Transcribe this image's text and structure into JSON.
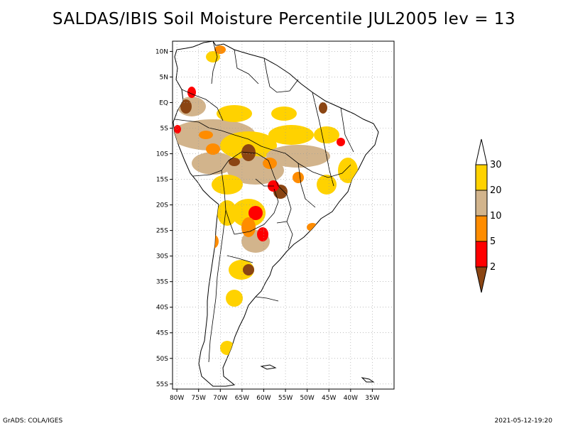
{
  "title": "SALDAS/IBIS Soil Moisture Percentile JUL2005 lev = 13",
  "footer": {
    "left": "GrADS: COLA/IGES",
    "right": "2021-05-12-19:20"
  },
  "map": {
    "region": "South America",
    "lon_range": [
      -81,
      -30
    ],
    "lat_range": [
      -56,
      12
    ],
    "gridlines": true,
    "lat_ticks": [
      {
        "value": 10,
        "label": "10N"
      },
      {
        "value": 5,
        "label": "5N"
      },
      {
        "value": 0,
        "label": "EQ"
      },
      {
        "value": -5,
        "label": "5S"
      },
      {
        "value": -10,
        "label": "10S"
      },
      {
        "value": -15,
        "label": "15S"
      },
      {
        "value": -20,
        "label": "20S"
      },
      {
        "value": -25,
        "label": "25S"
      },
      {
        "value": -30,
        "label": "30S"
      },
      {
        "value": -35,
        "label": "35S"
      },
      {
        "value": -40,
        "label": "40S"
      },
      {
        "value": -45,
        "label": "45S"
      },
      {
        "value": -50,
        "label": "50S"
      },
      {
        "value": -55,
        "label": "55S"
      }
    ],
    "lon_ticks": [
      {
        "value": -80,
        "label": "80W"
      },
      {
        "value": -75,
        "label": "75W"
      },
      {
        "value": -70,
        "label": "70W"
      },
      {
        "value": -65,
        "label": "65W"
      },
      {
        "value": -60,
        "label": "60W"
      },
      {
        "value": -55,
        "label": "55W"
      },
      {
        "value": -50,
        "label": "50W"
      },
      {
        "value": -45,
        "label": "45W"
      },
      {
        "value": -40,
        "label": "40W"
      },
      {
        "value": -35,
        "label": "35W"
      }
    ]
  },
  "colorbar": {
    "levels": [
      {
        "label": "30",
        "color": "#ffffff"
      },
      {
        "label": "20",
        "color": "#ffd200"
      },
      {
        "label": "10",
        "color": "#d2b48c"
      },
      {
        "label": "5",
        "color": "#ff8c00"
      },
      {
        "label": "2",
        "color": "#ff0000"
      },
      {
        "label": "",
        "color": "#8b4513"
      }
    ]
  },
  "colors": {
    "yellow": "#ffd200",
    "tan": "#d2b48c",
    "orange": "#ff8c00",
    "red": "#ff0000",
    "brown": "#8b4513"
  }
}
